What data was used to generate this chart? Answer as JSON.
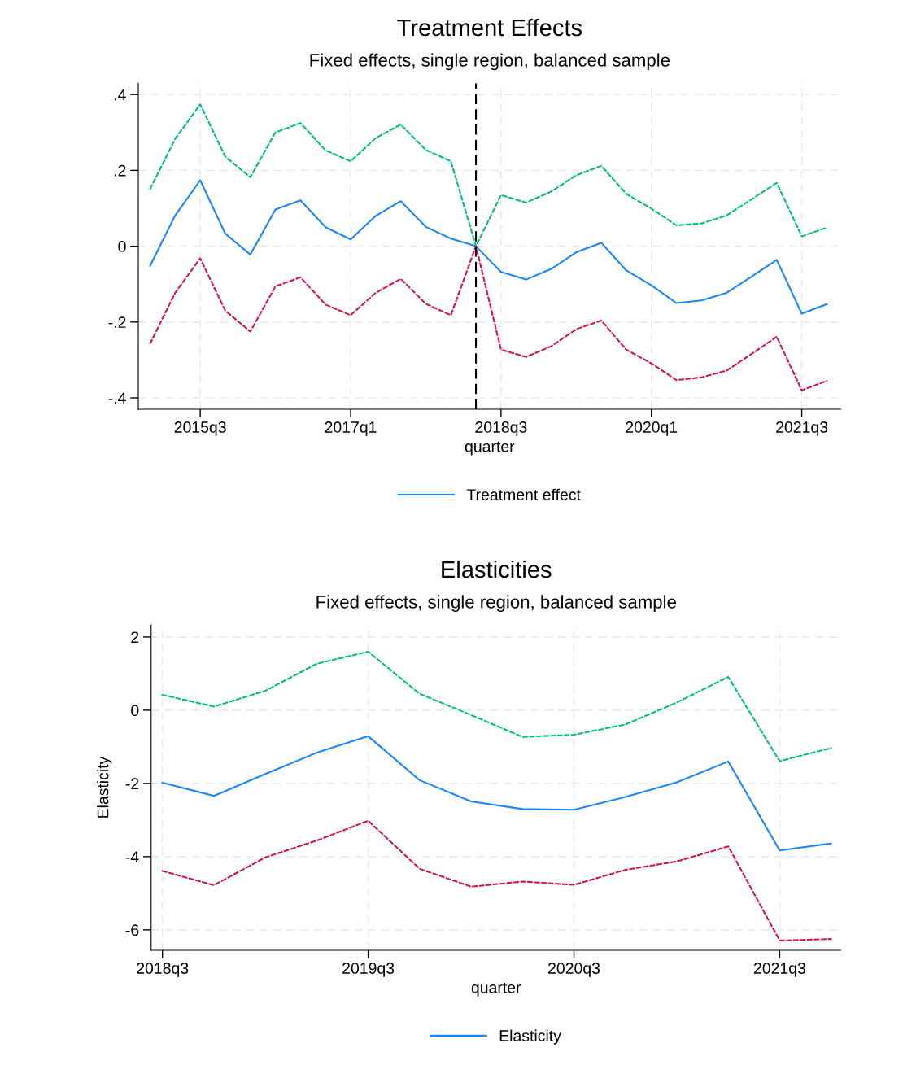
{
  "chart_data": [
    {
      "type": "line",
      "title": "Treatment Effects",
      "subtitle": "Fixed effects, single region, balanced sample",
      "xlabel": "quarter",
      "categories": [
        null,
        null,
        "2015q3",
        null,
        null,
        null,
        null,
        null,
        "2017q1",
        null,
        null,
        null,
        null,
        null,
        "2018q3",
        null,
        null,
        null,
        null,
        null,
        "2020q1",
        null,
        null,
        null,
        null,
        null,
        "2021q3",
        null
      ],
      "series": [
        {
          "name": "Treatment effect",
          "color": "#1a85ff",
          "line_style": "solid",
          "values": [
            -0.052,
            0.081,
            0.174,
            0.033,
            -0.022,
            0.097,
            0.121,
            0.05,
            0.018,
            0.08,
            0.119,
            0.051,
            0.02,
            0.0,
            -0.068,
            -0.088,
            -0.06,
            -0.016,
            0.009,
            -0.064,
            -0.103,
            -0.15,
            -0.143,
            -0.123,
            -0.08,
            -0.036,
            -0.178,
            -0.153
          ]
        },
        {
          "color": "#00bf7f",
          "line_style": "dashed",
          "values": [
            0.151,
            0.283,
            0.374,
            0.236,
            0.182,
            0.3,
            0.325,
            0.253,
            0.224,
            0.285,
            0.321,
            0.254,
            0.224,
            0.0,
            0.135,
            0.115,
            0.144,
            0.187,
            0.212,
            0.138,
            0.099,
            0.055,
            0.06,
            0.081,
            0.124,
            0.167,
            0.026,
            0.049
          ]
        },
        {
          "color": "#d41159",
          "line_style": "dashed",
          "values": [
            -0.257,
            -0.123,
            -0.032,
            -0.17,
            -0.225,
            -0.106,
            -0.082,
            -0.154,
            -0.182,
            -0.123,
            -0.086,
            -0.152,
            -0.182,
            0.0,
            -0.273,
            -0.292,
            -0.264,
            -0.219,
            -0.196,
            -0.273,
            -0.309,
            -0.353,
            -0.346,
            -0.328,
            -0.284,
            -0.239,
            -0.38,
            -0.355
          ]
        }
      ],
      "ylim": [
        -0.43,
        0.43
      ],
      "yticks": [
        {
          "value": -0.4,
          "label": "-.4"
        },
        {
          "value": -0.2,
          "label": "-.2"
        },
        0,
        {
          "value": 0.2,
          "label": ".2"
        },
        {
          "value": 0.4,
          "label": ".4"
        }
      ],
      "grid": true,
      "legend": "bottom"
    },
    {
      "type": "line",
      "title": "Elasticities",
      "subtitle": "Fixed effects, single region, balanced sample",
      "xlabel": "quarter",
      "ylabel": "Elasticity",
      "categories": [
        "2018q3",
        null,
        null,
        null,
        "2019q3",
        null,
        null,
        null,
        "2020q3",
        null,
        null,
        null,
        "2021q3",
        null
      ],
      "series": [
        {
          "name": "Elasticity",
          "color": "#1a85ff",
          "line_style": "solid",
          "values": [
            -1.98,
            -2.34,
            -1.74,
            -1.16,
            -0.71,
            -1.91,
            -2.49,
            -2.7,
            -2.72,
            -2.37,
            -1.97,
            -1.4,
            -3.83,
            -3.64
          ]
        },
        {
          "color": "#00bf7f",
          "line_style": "dashed",
          "values": [
            0.42,
            0.1,
            0.53,
            1.27,
            1.6,
            0.45,
            -0.13,
            -0.73,
            -0.67,
            -0.39,
            0.21,
            0.91,
            -1.39,
            -1.03
          ]
        },
        {
          "color": "#d41159",
          "line_style": "dashed",
          "values": [
            -4.39,
            -4.78,
            -4.02,
            -3.56,
            -3.02,
            -4.33,
            -4.82,
            -4.68,
            -4.77,
            -4.36,
            -4.13,
            -3.72,
            -6.29,
            -6.25
          ]
        }
      ],
      "ylim": [
        -6.56,
        2.33
      ],
      "yticks": [
        -6,
        -4,
        -2,
        0,
        2
      ],
      "grid": true,
      "legend": "bottom"
    }
  ]
}
